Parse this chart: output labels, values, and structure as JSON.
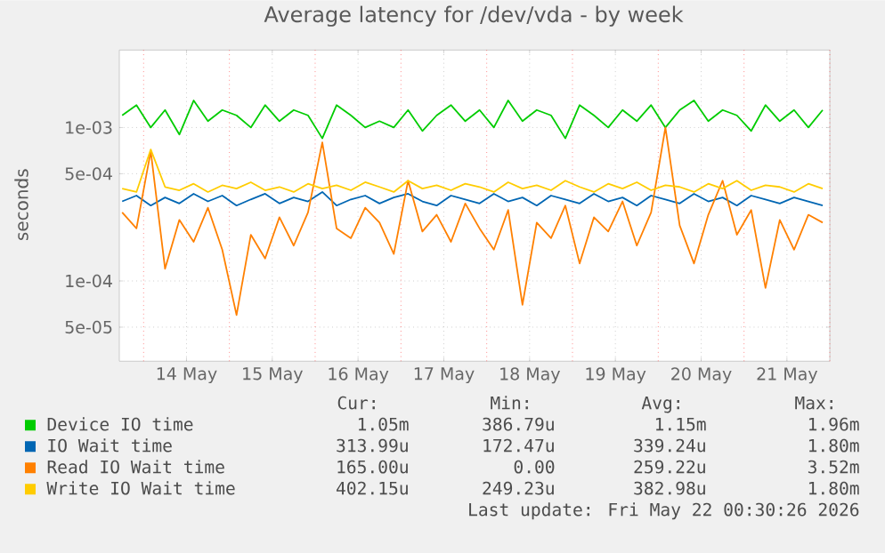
{
  "chart_data": {
    "type": "line",
    "title": "Average latency for /dev/vda - by week",
    "ylabel": "seconds",
    "log": "y",
    "grid": true,
    "legend": "bottom",
    "xlim": [
      "2026-05-13T17:12",
      "2026-05-22T00:00"
    ],
    "ylim": [
      3e-05,
      0.0032
    ],
    "xticks": [
      {
        "value": "2026-05-14T00:00",
        "label": null
      },
      {
        "value": "2026-05-15T00:00",
        "label": null
      },
      {
        "value": "2026-05-16T00:00",
        "label": null
      },
      {
        "value": "2026-05-17T00:00",
        "label": null
      },
      {
        "value": "2026-05-18T00:00",
        "label": null
      },
      {
        "value": "2026-05-19T00:00",
        "label": null
      },
      {
        "value": "2026-05-20T00:00",
        "label": null
      },
      {
        "value": "2026-05-21T00:00",
        "label": null
      },
      {
        "value": "2026-05-22T00:00",
        "label": null
      },
      {
        "value": "2026-05-14T12:00",
        "label": "14 May"
      },
      {
        "value": "2026-05-15T12:00",
        "label": "15 May"
      },
      {
        "value": "2026-05-16T12:00",
        "label": "16 May"
      },
      {
        "value": "2026-05-17T12:00",
        "label": "17 May"
      },
      {
        "value": "2026-05-18T12:00",
        "label": "18 May"
      },
      {
        "value": "2026-05-19T12:00",
        "label": "19 May"
      },
      {
        "value": "2026-05-20T12:00",
        "label": "20 May"
      },
      {
        "value": "2026-05-21T12:00",
        "label": "21 May"
      }
    ],
    "yticks": [
      {
        "value": 5e-05,
        "label": "5e-05"
      },
      {
        "value": 0.0001,
        "label": "1e-04"
      },
      {
        "value": 0.0005,
        "label": "5e-04"
      },
      {
        "value": 0.001,
        "label": "1e-03"
      }
    ],
    "x": [
      "2026-05-13T18:00",
      "2026-05-13T22:00",
      "2026-05-14T02:00",
      "2026-05-14T06:00",
      "2026-05-14T10:00",
      "2026-05-14T14:00",
      "2026-05-14T18:00",
      "2026-05-14T22:00",
      "2026-05-15T02:00",
      "2026-05-15T06:00",
      "2026-05-15T10:00",
      "2026-05-15T14:00",
      "2026-05-15T18:00",
      "2026-05-15T22:00",
      "2026-05-16T02:00",
      "2026-05-16T06:00",
      "2026-05-16T10:00",
      "2026-05-16T14:00",
      "2026-05-16T18:00",
      "2026-05-16T22:00",
      "2026-05-17T02:00",
      "2026-05-17T06:00",
      "2026-05-17T10:00",
      "2026-05-17T14:00",
      "2026-05-17T18:00",
      "2026-05-17T22:00",
      "2026-05-18T02:00",
      "2026-05-18T06:00",
      "2026-05-18T10:00",
      "2026-05-18T14:00",
      "2026-05-18T18:00",
      "2026-05-18T22:00",
      "2026-05-19T02:00",
      "2026-05-19T06:00",
      "2026-05-19T10:00",
      "2026-05-19T14:00",
      "2026-05-19T18:00",
      "2026-05-19T22:00",
      "2026-05-20T02:00",
      "2026-05-20T06:00",
      "2026-05-20T10:00",
      "2026-05-20T14:00",
      "2026-05-20T18:00",
      "2026-05-20T22:00",
      "2026-05-21T02:00",
      "2026-05-21T06:00",
      "2026-05-21T10:00",
      "2026-05-21T14:00",
      "2026-05-21T18:00",
      "2026-05-21T22:00"
    ],
    "series": [
      {
        "name": "Device IO time",
        "color": "#00cc00",
        "values": [
          0.0012,
          0.0014,
          0.001,
          0.0013,
          0.0009,
          0.0015,
          0.0011,
          0.0013,
          0.0012,
          0.001,
          0.0014,
          0.0011,
          0.0013,
          0.0012,
          0.00085,
          0.0014,
          0.0012,
          0.001,
          0.0011,
          0.001,
          0.0013,
          0.00095,
          0.0012,
          0.0014,
          0.0011,
          0.0013,
          0.001,
          0.0015,
          0.0011,
          0.0013,
          0.0012,
          0.00085,
          0.0014,
          0.0012,
          0.001,
          0.0013,
          0.0011,
          0.0014,
          0.001,
          0.0013,
          0.0015,
          0.0011,
          0.0013,
          0.0012,
          0.00095,
          0.0014,
          0.0011,
          0.0013,
          0.001,
          0.0013
        ]
      },
      {
        "name": "IO Wait time",
        "color": "#0066b3",
        "values": [
          0.00033,
          0.00036,
          0.00031,
          0.00035,
          0.00032,
          0.00037,
          0.00033,
          0.00036,
          0.00031,
          0.00034,
          0.00037,
          0.00032,
          0.00035,
          0.00033,
          0.00038,
          0.00031,
          0.00034,
          0.00036,
          0.00032,
          0.00035,
          0.00037,
          0.00033,
          0.00031,
          0.00036,
          0.00034,
          0.00032,
          0.00037,
          0.00033,
          0.00035,
          0.00031,
          0.00036,
          0.00034,
          0.00032,
          0.00037,
          0.00033,
          0.00035,
          0.00031,
          0.00036,
          0.00034,
          0.00032,
          0.00037,
          0.00033,
          0.00035,
          0.00031,
          0.00036,
          0.00034,
          0.00032,
          0.00035,
          0.00033,
          0.00031
        ]
      },
      {
        "name": "Read IO Wait time",
        "color": "#ff8000",
        "values": [
          0.00028,
          0.00022,
          0.0007,
          0.00012,
          0.00025,
          0.00018,
          0.0003,
          0.00016,
          6e-05,
          0.0002,
          0.00014,
          0.00026,
          0.00017,
          0.00028,
          0.0008,
          0.00022,
          0.00019,
          0.0003,
          0.00024,
          0.00015,
          0.00045,
          0.00021,
          0.00027,
          0.00018,
          0.00032,
          0.00022,
          0.00016,
          0.00029,
          7e-05,
          0.00024,
          0.00019,
          0.00031,
          0.00013,
          0.00026,
          0.00021,
          0.00033,
          0.00017,
          0.00028,
          0.001,
          0.00023,
          0.00013,
          0.00027,
          0.00045,
          0.0002,
          0.00029,
          9e-05,
          0.00025,
          0.00016,
          0.00027,
          0.00024
        ]
      },
      {
        "name": "Write IO Wait time",
        "color": "#ffcc00",
        "values": [
          0.0004,
          0.00038,
          0.00072,
          0.00041,
          0.00039,
          0.00043,
          0.00038,
          0.00042,
          0.0004,
          0.00044,
          0.00039,
          0.00041,
          0.00038,
          0.00043,
          0.0004,
          0.00042,
          0.00039,
          0.00044,
          0.00041,
          0.00038,
          0.00045,
          0.0004,
          0.00042,
          0.00039,
          0.00043,
          0.00041,
          0.00038,
          0.00044,
          0.0004,
          0.00042,
          0.00039,
          0.00045,
          0.00041,
          0.00038,
          0.00043,
          0.0004,
          0.00044,
          0.00039,
          0.00042,
          0.00041,
          0.00038,
          0.00043,
          0.0004,
          0.00045,
          0.00039,
          0.00042,
          0.00041,
          0.00038,
          0.00043,
          0.0004
        ]
      }
    ],
    "annotations": [
      "Cur:",
      "Min:",
      "Avg:",
      "Max:",
      "1.05m",
      "386.79u",
      "1.15m",
      "1.96m",
      "313.99u",
      "172.47u",
      "339.24u",
      "1.80m",
      "165.00u",
      "0.00",
      "259.22u",
      "3.52m",
      "402.15u",
      "249.23u",
      "382.98u",
      "1.80m",
      "Last update: Fri May 22 00:30:26 2026"
    ]
  }
}
